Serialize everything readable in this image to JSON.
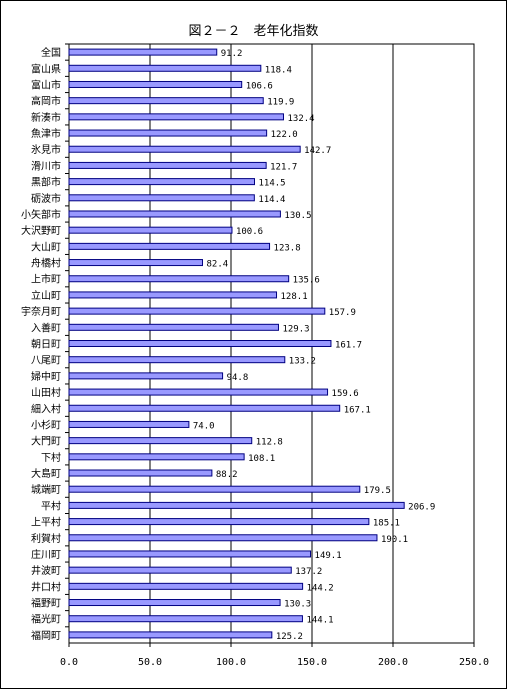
{
  "chart_data": {
    "type": "bar",
    "orientation": "horizontal",
    "title": "図２－２　老年化指数",
    "xlabel": "",
    "ylabel": "",
    "xlim": [
      0,
      250
    ],
    "x_ticks": [
      "0.0",
      "50.0",
      "100.0",
      "150.0",
      "200.0",
      "250.0"
    ],
    "grid": "vertical lines at 50, 100, 150, 200",
    "legend": "none",
    "bar_color": "#9999ff",
    "bar_border": "#000080",
    "categories": [
      "全国",
      "富山県",
      "富山市",
      "高岡市",
      "新湊市",
      "魚津市",
      "氷見市",
      "滑川市",
      "黒部市",
      "砺波市",
      "小矢部市",
      "大沢野町",
      "大山町",
      "舟橋村",
      "上市町",
      "立山町",
      "宇奈月町",
      "入善町",
      "朝日町",
      "八尾町",
      "婦中町",
      "山田村",
      "細入村",
      "小杉町",
      "大門町",
      "下村",
      "大島町",
      "城端町",
      "平村",
      "上平村",
      "利賀村",
      "庄川町",
      "井波町",
      "井口村",
      "福野町",
      "福光町",
      "福岡町"
    ],
    "values": [
      91.2,
      118.4,
      106.6,
      119.9,
      132.4,
      122.0,
      142.7,
      121.7,
      114.5,
      114.4,
      130.5,
      100.6,
      123.8,
      82.4,
      135.6,
      128.1,
      157.9,
      129.3,
      161.7,
      133.2,
      94.8,
      159.6,
      167.1,
      74.0,
      112.8,
      108.1,
      88.2,
      179.5,
      206.9,
      185.1,
      190.1,
      149.1,
      137.2,
      144.2,
      130.3,
      144.1,
      125.2
    ],
    "value_labels": [
      "91.2",
      "118.4",
      "106.6",
      "119.9",
      "132.4",
      "122.0",
      "142.7",
      "121.7",
      "114.5",
      "114.4",
      "130.5",
      "100.6",
      "123.8",
      "82.4",
      "135.6",
      "128.1",
      "157.9",
      "129.3",
      "161.7",
      "133.2",
      "94.8",
      "159.6",
      "167.1",
      "74.0",
      "112.8",
      "108.1",
      "88.2",
      "179.5",
      "206.9",
      "185.1",
      "190.1",
      "149.1",
      "137.2",
      "144.2",
      "130.3",
      "144.1",
      "125.2"
    ]
  }
}
